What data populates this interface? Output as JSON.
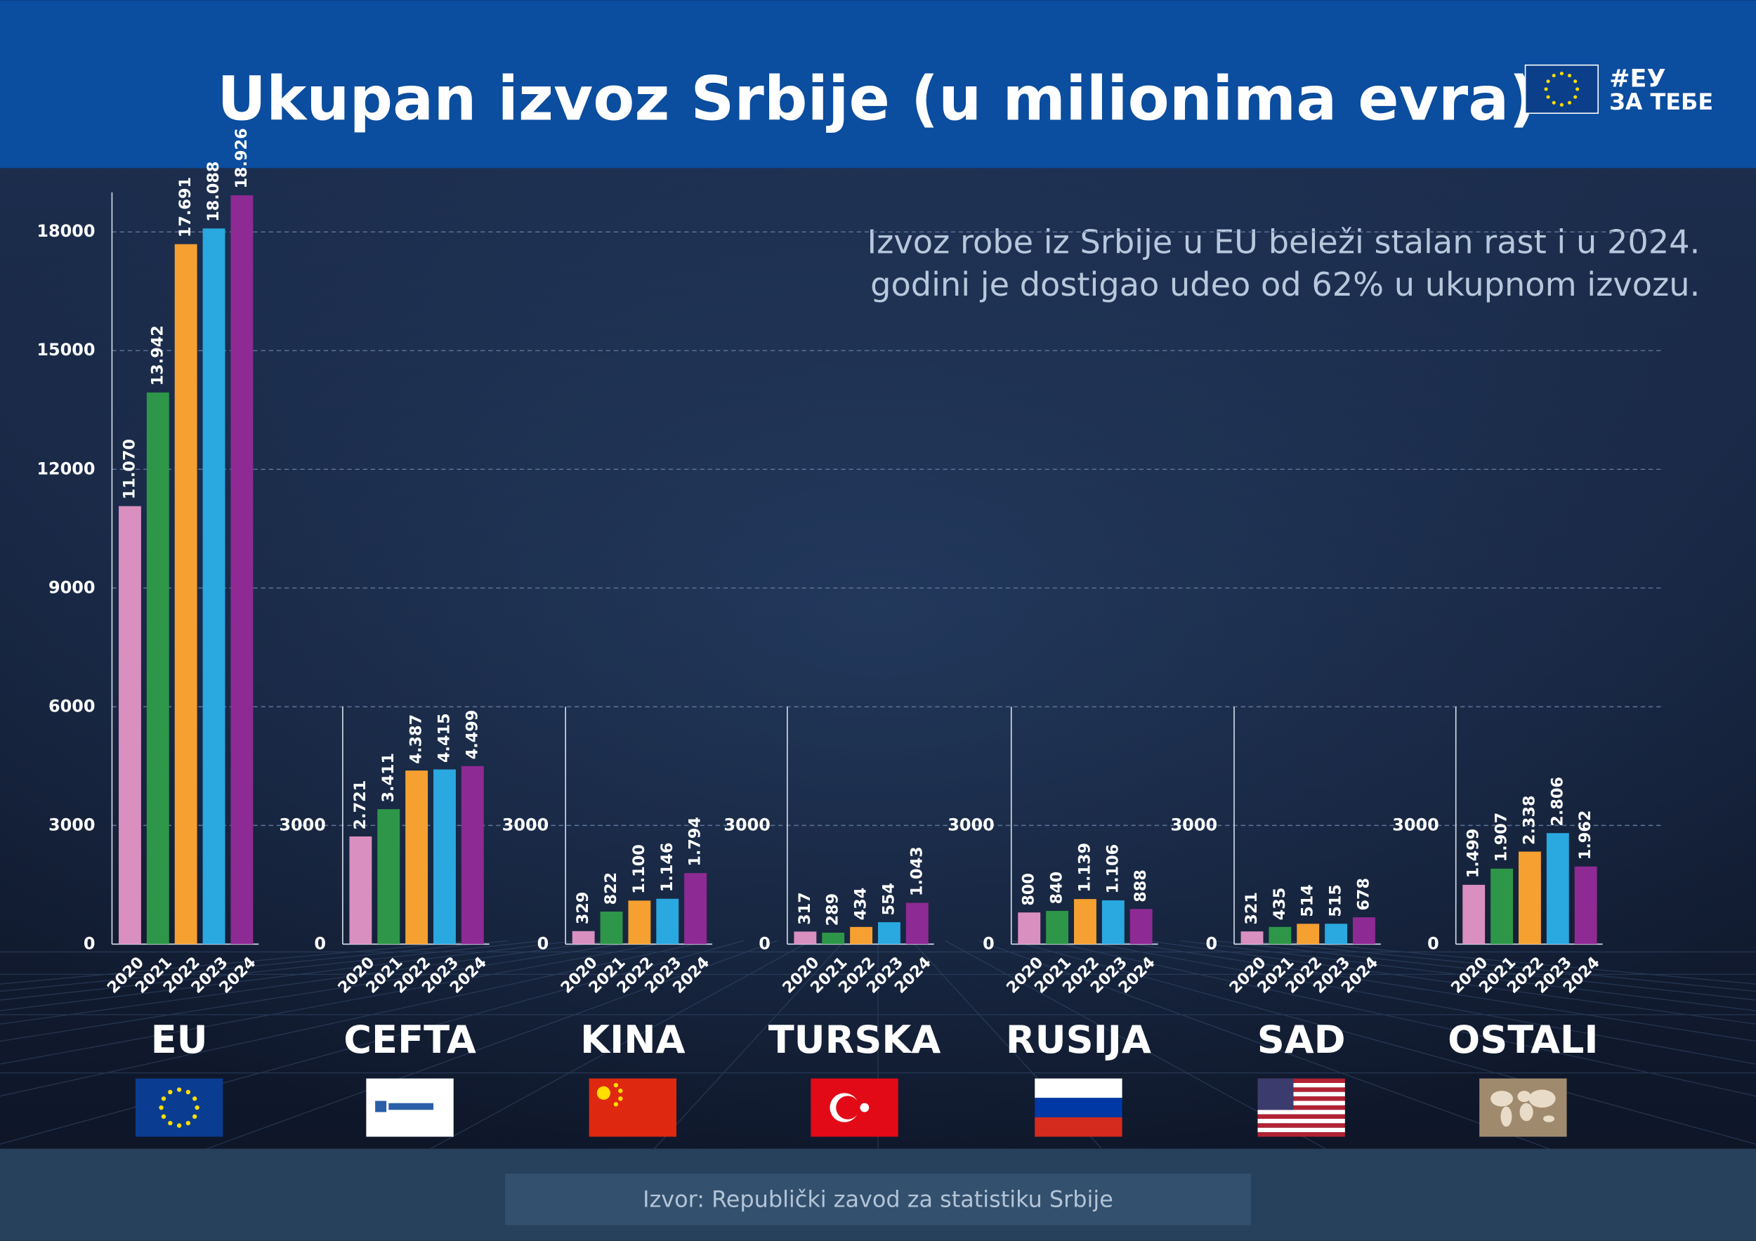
{
  "header": {
    "title": "Ukupan izvoz Srbije (u milionima evra)",
    "logo_lines": [
      "#ЕУ",
      "ЗА ТЕБЕ"
    ]
  },
  "annotation": [
    "Izvoz robe iz Srbije u EU beleži stalan rast i u 2024.",
    "godini je dostigao udeo od 62% u ukupnom izvozu."
  ],
  "source": "Izvor: Republički zavod za statistiku Srbije",
  "chart_data": [
    {
      "type": "bar",
      "title": "EU",
      "categories": [
        "2020",
        "2021",
        "2022",
        "2023",
        "2024"
      ],
      "values": [
        11070,
        13942,
        17691,
        18088,
        18926
      ],
      "value_labels": [
        "11.070",
        "13.942",
        "17.691",
        "18.088",
        "18.926"
      ],
      "colors": [
        "#d98fc0",
        "#2e9648",
        "#f5a030",
        "#2aa8e0",
        "#8e2a94"
      ],
      "ylim": [
        0,
        19000
      ],
      "yticks": [
        0,
        3000,
        6000,
        9000,
        12000,
        15000,
        18000
      ],
      "grid": true
    },
    {
      "type": "bar",
      "title": "CEFTA",
      "categories": [
        "2020",
        "2021",
        "2022",
        "2023",
        "2024"
      ],
      "values": [
        2721,
        3411,
        4387,
        4415,
        4499
      ],
      "value_labels": [
        "2.721",
        "3.411",
        "4.387",
        "4.415",
        "4.499"
      ],
      "colors": [
        "#d98fc0",
        "#2e9648",
        "#f5a030",
        "#2aa8e0",
        "#8e2a94"
      ],
      "ylim": [
        0,
        6000
      ],
      "yticks": [
        0,
        3000
      ],
      "grid": false
    },
    {
      "type": "bar",
      "title": "KINA",
      "categories": [
        "2020",
        "2021",
        "2022",
        "2023",
        "2024"
      ],
      "values": [
        329,
        822,
        1100,
        1146,
        1794
      ],
      "value_labels": [
        "329",
        "822",
        "1.100",
        "1.146",
        "1.794"
      ],
      "colors": [
        "#d98fc0",
        "#2e9648",
        "#f5a030",
        "#2aa8e0",
        "#8e2a94"
      ],
      "ylim": [
        0,
        6000
      ],
      "yticks": [
        0,
        3000
      ],
      "grid": false
    },
    {
      "type": "bar",
      "title": "TURSKA",
      "categories": [
        "2020",
        "2021",
        "2022",
        "2023",
        "2024"
      ],
      "values": [
        317,
        289,
        434,
        554,
        1043
      ],
      "value_labels": [
        "317",
        "289",
        "434",
        "554",
        "1.043"
      ],
      "colors": [
        "#d98fc0",
        "#2e9648",
        "#f5a030",
        "#2aa8e0",
        "#8e2a94"
      ],
      "ylim": [
        0,
        6000
      ],
      "yticks": [
        0,
        3000
      ],
      "grid": false
    },
    {
      "type": "bar",
      "title": "RUSIJA",
      "categories": [
        "2020",
        "2021",
        "2022",
        "2023",
        "2024"
      ],
      "values": [
        800,
        840,
        1139,
        1106,
        888
      ],
      "value_labels": [
        "800",
        "840",
        "1.139",
        "1.106",
        "888"
      ],
      "colors": [
        "#d98fc0",
        "#2e9648",
        "#f5a030",
        "#2aa8e0",
        "#8e2a94"
      ],
      "ylim": [
        0,
        6000
      ],
      "yticks": [
        0,
        3000
      ],
      "grid": false
    },
    {
      "type": "bar",
      "title": "SAD",
      "categories": [
        "2020",
        "2021",
        "2022",
        "2023",
        "2024"
      ],
      "values": [
        321,
        435,
        514,
        515,
        678
      ],
      "value_labels": [
        "321",
        "435",
        "514",
        "515",
        "678"
      ],
      "colors": [
        "#d98fc0",
        "#2e9648",
        "#f5a030",
        "#2aa8e0",
        "#8e2a94"
      ],
      "ylim": [
        0,
        6000
      ],
      "yticks": [
        0,
        3000
      ],
      "grid": false
    },
    {
      "type": "bar",
      "title": "OSTALI",
      "categories": [
        "2020",
        "2021",
        "2022",
        "2023",
        "2024"
      ],
      "values": [
        1499,
        1907,
        2338,
        2806,
        1962
      ],
      "value_labels": [
        "1.499",
        "1.907",
        "2.338",
        "2.806",
        "1.962"
      ],
      "colors": [
        "#d98fc0",
        "#2e9648",
        "#f5a030",
        "#2aa8e0",
        "#8e2a94"
      ],
      "ylim": [
        0,
        6000
      ],
      "yticks": [
        0,
        3000
      ],
      "grid": false
    }
  ]
}
